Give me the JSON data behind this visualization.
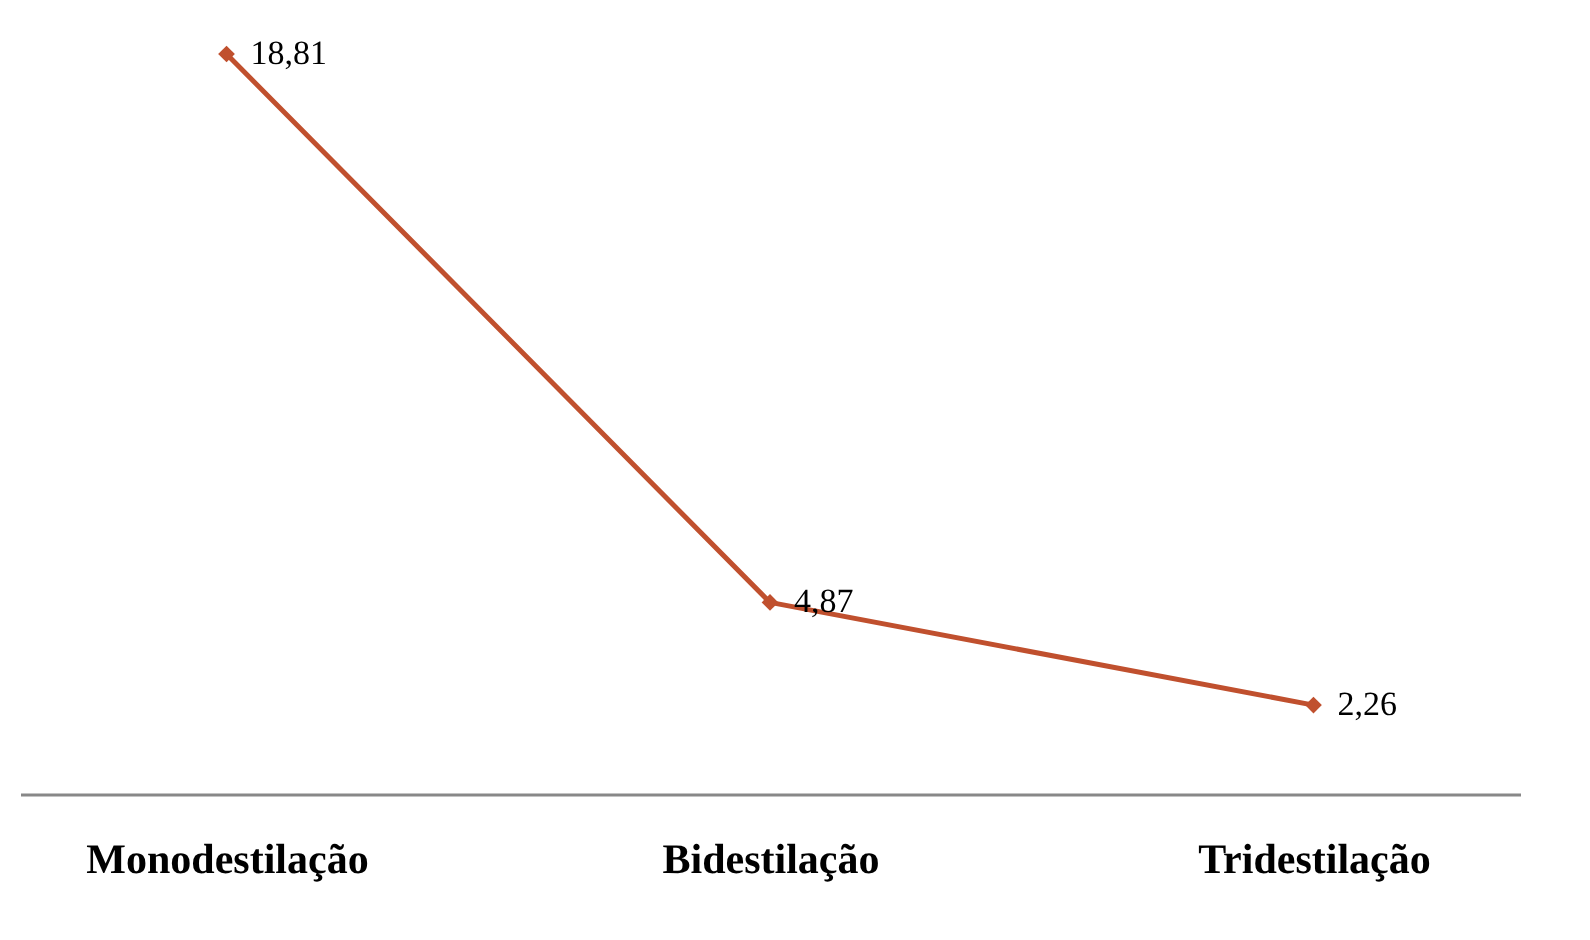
{
  "chart_data": {
    "type": "line",
    "categories": [
      "Monodestilação",
      "Bidestilação",
      "Tridestilação"
    ],
    "series": [
      {
        "color": "#c0502e",
        "values": [
          18.81,
          4.87,
          2.26
        ],
        "value_labels": [
          "18,81",
          "4,87",
          "2,26"
        ]
      }
    ],
    "marker": "diamond",
    "line_style": "solid",
    "grid": false,
    "legend": false
  }
}
